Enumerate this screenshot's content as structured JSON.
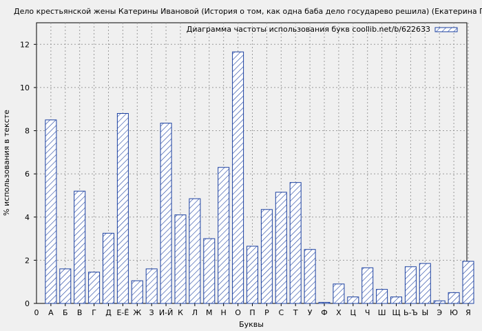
{
  "chart_data": {
    "type": "bar",
    "title": "Дело крестьянской жены Катерины Ивановой (История о том, как одна баба дело государево решила) (Екатерина Гликен)",
    "xlabel": "Буквы",
    "ylabel": "% использования в тексте",
    "legend": {
      "label": "Диаграмма частоты использования букв coollib.net/b/622633",
      "position": "top-right"
    },
    "x_origin_label": "0",
    "categories": [
      "А",
      "Б",
      "В",
      "Г",
      "Д",
      "Е-Ё",
      "Ж",
      "З",
      "И-Й",
      "К",
      "Л",
      "М",
      "Н",
      "О",
      "П",
      "Р",
      "С",
      "Т",
      "У",
      "Ф",
      "Х",
      "Ц",
      "Ч",
      "Ш",
      "Щ",
      "Ь-Ъ",
      "Ы",
      "Э",
      "Ю",
      "Я"
    ],
    "series": [
      {
        "values": [
          8.5,
          1.6,
          5.2,
          1.45,
          3.25,
          8.8,
          1.05,
          1.6,
          8.35,
          4.1,
          4.85,
          3.0,
          6.3,
          11.65,
          2.65,
          4.35,
          5.15,
          5.6,
          2.5,
          0.05,
          0.9,
          0.3,
          1.65,
          0.65,
          0.3,
          1.7,
          1.85,
          0.12,
          0.5,
          1.95
        ]
      }
    ],
    "ylim": [
      0,
      13
    ],
    "yticks": [
      0,
      2,
      4,
      6,
      8,
      10,
      12
    ],
    "grid": true,
    "colors": {
      "bar_stroke": "#1a3fa0",
      "bar_hatch": "#1a3fa0",
      "bar_fill": "#ffffff",
      "grid": "#9a9a9a",
      "plot_bg": "#f0f0f0"
    }
  }
}
